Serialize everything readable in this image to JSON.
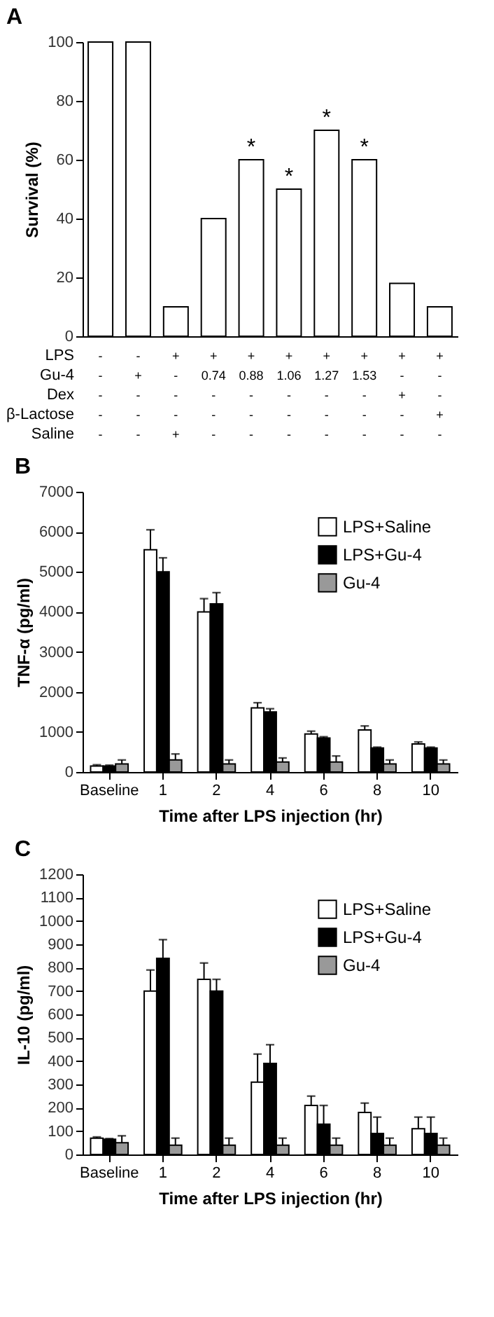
{
  "chart_data": [
    {
      "type": "bar",
      "title": "A",
      "ylabel": "Survival (%)",
      "categories": [
        null,
        null,
        null,
        null,
        null,
        null,
        null,
        null,
        null,
        null
      ],
      "values": [
        100,
        100,
        10,
        40,
        60,
        50,
        70,
        60,
        18,
        10
      ],
      "color": "#ffffff",
      "value_labels": [
        null,
        null,
        null,
        null,
        "*",
        "*",
        "*",
        "*",
        null,
        null
      ],
      "ylim": [
        0,
        100
      ],
      "yticks": [
        0,
        20,
        40,
        60,
        80,
        100
      ],
      "tick_labels": "y",
      "grid": false,
      "legend": false,
      "annotations": [
        "LPS",
        "-",
        "-",
        "+",
        "+",
        "+",
        "+",
        "+",
        "+",
        "+",
        "+",
        "Gu-4",
        "-",
        "+",
        "-",
        "0.74",
        "0.88",
        "1.06",
        "1.27",
        "1.53",
        "-",
        "-",
        "Dex",
        "-",
        "-",
        "-",
        "-",
        "-",
        "-",
        "-",
        "-",
        "+",
        "-",
        "β-Lactose",
        "-",
        "-",
        "-",
        "-",
        "-",
        "-",
        "-",
        "-",
        "-",
        "+",
        "Saline",
        "-",
        "-",
        "+",
        "-",
        "-",
        "-",
        "-",
        "-",
        "-",
        "-"
      ]
    },
    {
      "type": "bar",
      "title": "B",
      "ylabel": "TNF-α (pg/ml)",
      "xlabel": "Time after LPS injection (hr)",
      "categories": [
        "Baseline",
        "1",
        "2",
        "4",
        "6",
        "8",
        "10"
      ],
      "series": [
        {
          "name": "LPS+Saline",
          "color": "#ffffff",
          "values": [
            150,
            5550,
            4000,
            1600,
            950,
            1050,
            700
          ],
          "errors": [
            [
              150,
              180
            ],
            [
              5550,
              6050
            ],
            [
              4000,
              4330
            ],
            [
              1600,
              1730
            ],
            [
              950,
              1020
            ],
            [
              1050,
              1150
            ],
            [
              700,
              750
            ]
          ]
        },
        {
          "name": "LPS+Gu-4",
          "color": "#000000",
          "values": [
            150,
            5000,
            4200,
            1500,
            850,
            600,
            600
          ],
          "errors": [
            [
              150,
              170
            ],
            [
              5000,
              5350
            ],
            [
              4200,
              4480
            ],
            [
              1500,
              1580
            ],
            [
              850,
              880
            ],
            [
              600,
              620
            ],
            [
              600,
              620
            ]
          ]
        },
        {
          "name": "Gu-4",
          "color": "#999999",
          "values": [
            200,
            300,
            200,
            250,
            250,
            200,
            200
          ],
          "errors": [
            [
              200,
              300
            ],
            [
              300,
              450
            ],
            [
              200,
              300
            ],
            [
              250,
              350
            ],
            [
              250,
              400
            ],
            [
              200,
              300
            ],
            [
              200,
              300
            ]
          ]
        }
      ],
      "ylim": [
        0,
        7000
      ],
      "yticks": [
        0,
        1000,
        2000,
        3000,
        4000,
        5000,
        6000,
        7000
      ],
      "grid": false,
      "legend": "top right"
    },
    {
      "type": "bar",
      "title": "C",
      "ylabel": "IL-10 (pg/ml)",
      "xlabel": "Time after LPS injection (hr)",
      "categories": [
        "Baseline",
        "1",
        "2",
        "4",
        "6",
        "8",
        "10"
      ],
      "series": [
        {
          "name": "LPS+Saline",
          "color": "#ffffff",
          "values": [
            70,
            700,
            750,
            310,
            210,
            180,
            110
          ],
          "errors": [
            [
              70,
              75
            ],
            [
              700,
              790
            ],
            [
              750,
              820
            ],
            [
              310,
              430
            ],
            [
              210,
              250
            ],
            [
              180,
              220
            ],
            [
              110,
              160
            ]
          ]
        },
        {
          "name": "LPS+Gu-4",
          "color": "#000000",
          "values": [
            65,
            840,
            700,
            390,
            130,
            90,
            90
          ],
          "errors": [
            [
              65,
              68
            ],
            [
              840,
              920
            ],
            [
              700,
              750
            ],
            [
              390,
              470
            ],
            [
              130,
              210
            ],
            [
              90,
              160
            ],
            [
              90,
              160
            ]
          ]
        },
        {
          "name": "Gu-4",
          "color": "#999999",
          "values": [
            50,
            40,
            40,
            40,
            40,
            40,
            40
          ],
          "errors": [
            [
              50,
              80
            ],
            [
              40,
              70
            ],
            [
              40,
              70
            ],
            [
              40,
              70
            ],
            [
              40,
              70
            ],
            [
              40,
              70
            ],
            [
              40,
              70
            ]
          ]
        }
      ],
      "ylim": [
        0,
        1200
      ],
      "yticks": [
        0,
        100,
        200,
        300,
        400,
        500,
        600,
        700,
        800,
        900,
        1000,
        1100,
        1200
      ],
      "grid": false,
      "legend": "top right"
    }
  ]
}
